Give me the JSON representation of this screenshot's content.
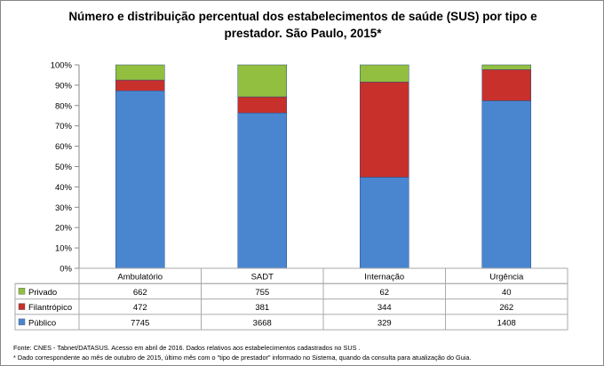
{
  "chart_data": {
    "type": "bar",
    "stacked": "percent",
    "title": "Número e distribuição percentual dos estabelecimentos de saúde (SUS) por tipo e prestador. São Paulo, 2015*",
    "categories": [
      "Ambulatório",
      "SADT",
      "Internação",
      "Urgência"
    ],
    "series": [
      {
        "name": "Público",
        "color": "#4a86d0",
        "values": [
          7745,
          3668,
          329,
          1408
        ]
      },
      {
        "name": "Filantrópico",
        "color": "#c8302c",
        "values": [
          472,
          381,
          344,
          262
        ]
      },
      {
        "name": "Privado",
        "color": "#92bf3f",
        "values": [
          662,
          755,
          62,
          40
        ]
      }
    ],
    "table_order": [
      "Privado",
      "Filantrópico",
      "Público"
    ],
    "ylim": [
      0,
      100
    ],
    "yticks": [
      "0%",
      "10%",
      "20%",
      "30%",
      "40%",
      "50%",
      "60%",
      "70%",
      "80%",
      "90%",
      "100%"
    ],
    "grid": false,
    "legend": "data-table"
  },
  "footer": {
    "source": "Fonte: CNES - Tabnet/DATASUS. Acesso em abril de 2016.  Dados relativos aos estabelecimentos cadastrados no SUS .",
    "note": "* Dado correspondente ao mês de  outubro de 2015, último mês com o \"tipo de prestador\" informado no Sistema, quando da consulta para atualização do Guia."
  }
}
